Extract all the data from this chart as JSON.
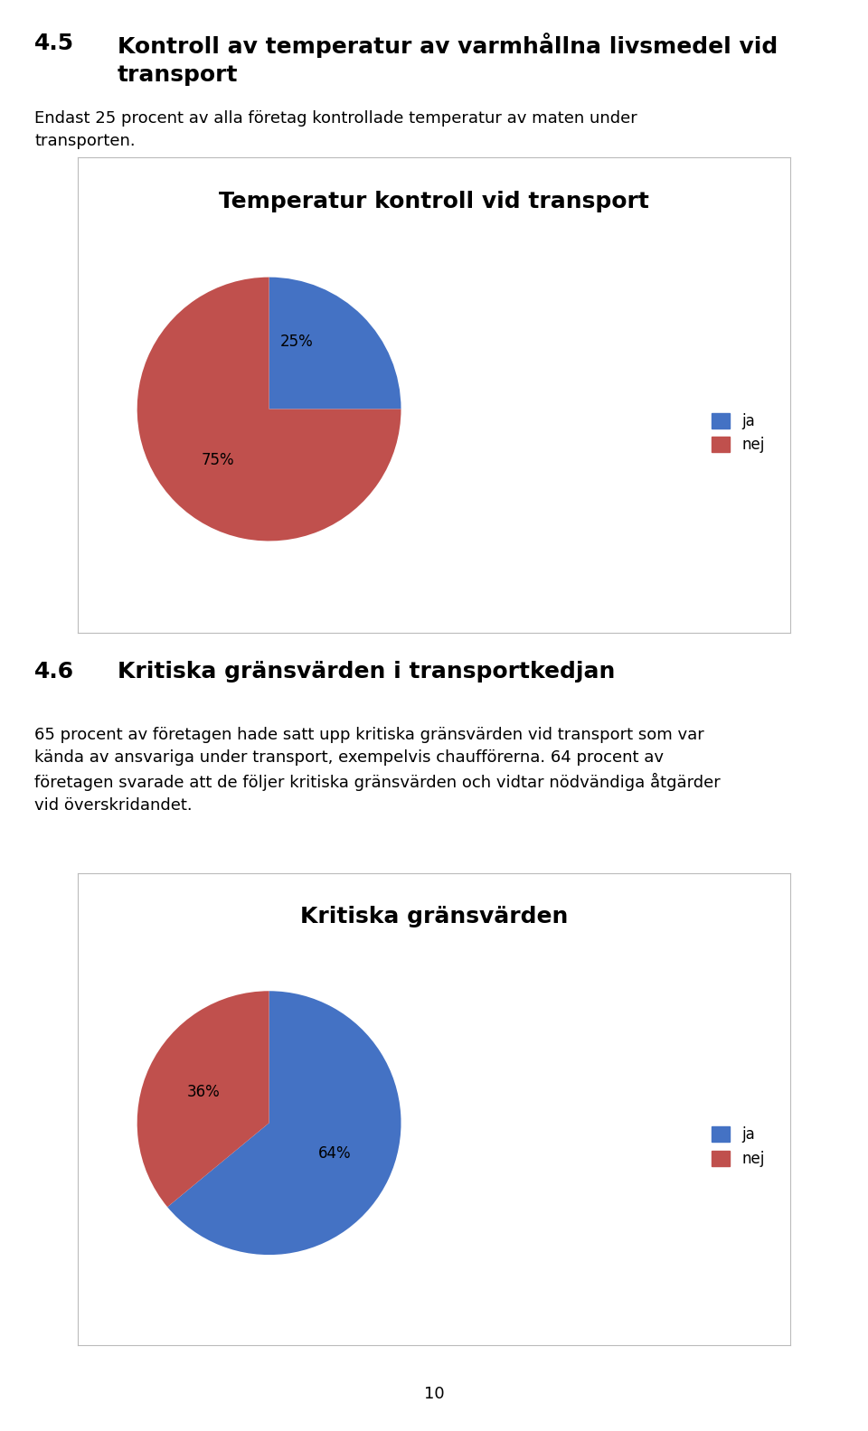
{
  "section_number_1": "4.5",
  "section_heading_1": "Kontroll av temperatur av varmhållna livsmedel vid\ntransport",
  "body_text_1": "Endast 25 procent av alla företag kontrollade temperatur av maten under\ntransporten.",
  "chart1_title": "Temperatur kontroll vid transport",
  "chart1_values": [
    25,
    75
  ],
  "chart1_colors": [
    "#4472C4",
    "#C0504D"
  ],
  "chart1_legend": [
    "ja",
    "nej"
  ],
  "chart1_pct_labels": [
    "25%",
    "75%"
  ],
  "section_number_2": "4.6",
  "section_heading_2": "Kritiska gränsvärden i transportkedjan",
  "body_text_2": "65 procent av företagen hade satt upp kritiska gränsvärden vid transport som var\nkända av ansvariga under transport, exempelvis chaufförerna. 64 procent av\nföretagen svarade att de följer kritiska gränsvärden och vidtar nödvändiga åtgärder\nvid överskridandet.",
  "chart2_title": "Kritiska gränsvärden",
  "chart2_values": [
    64,
    36
  ],
  "chart2_colors": [
    "#4472C4",
    "#C0504D"
  ],
  "chart2_legend": [
    "ja",
    "nej"
  ],
  "chart2_pct_labels": [
    "64%",
    "36%"
  ],
  "page_number": "10",
  "bg_color": "#FFFFFF",
  "box_edge_color": "#BBBBBB",
  "section_fontsize": 18,
  "body_fontsize": 13,
  "chart_title_fontsize": 18,
  "pie_label_fontsize": 12,
  "legend_fontsize": 12
}
